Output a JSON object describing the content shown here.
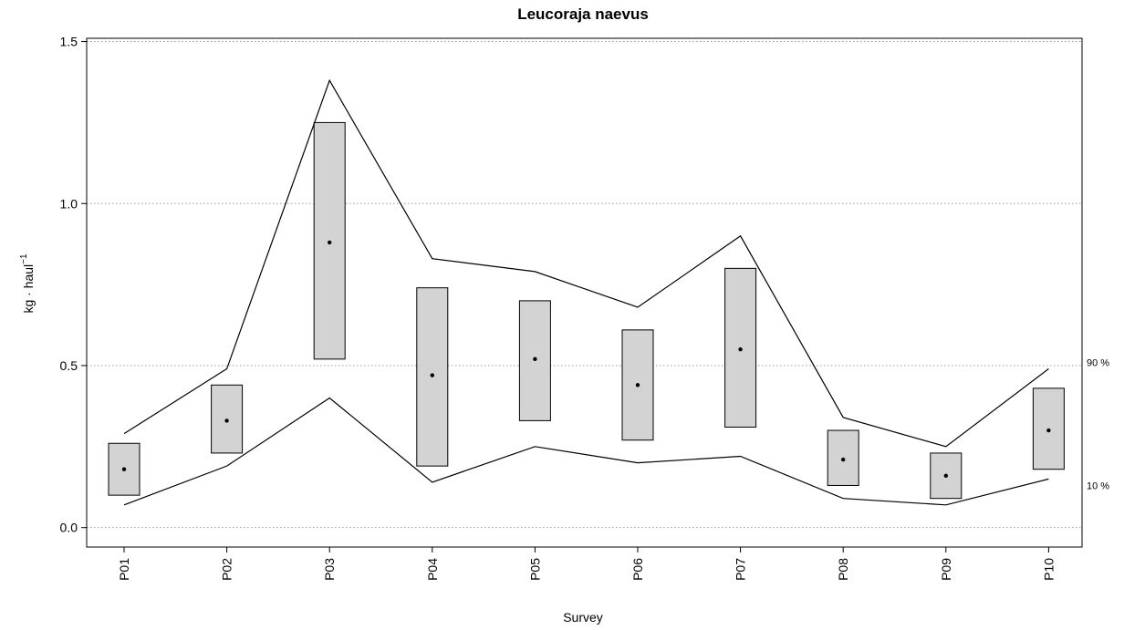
{
  "chart_data": {
    "type": "box",
    "title": "Leucoraja naevus",
    "xlabel": "Survey",
    "ylabel": "kg · haul",
    "ylabel_superscript": "−1",
    "ylim": [
      -0.06,
      1.51
    ],
    "yticks": [
      0.0,
      0.5,
      1.0,
      1.5
    ],
    "ytick_labels": [
      "0.0",
      "0.5",
      "1.0",
      "1.5"
    ],
    "grid": "horizontal dotted at y ticks",
    "categories": [
      "P01",
      "P02",
      "P03",
      "P04",
      "P05",
      "P06",
      "P07",
      "P08",
      "P09",
      "P10"
    ],
    "boxes": [
      {
        "category": "P01",
        "low": 0.1,
        "high": 0.26,
        "mid": 0.18
      },
      {
        "category": "P02",
        "low": 0.23,
        "high": 0.44,
        "mid": 0.33
      },
      {
        "category": "P03",
        "low": 0.52,
        "high": 1.25,
        "mid": 0.88
      },
      {
        "category": "P04",
        "low": 0.19,
        "high": 0.74,
        "mid": 0.47
      },
      {
        "category": "P05",
        "low": 0.33,
        "high": 0.7,
        "mid": 0.52
      },
      {
        "category": "P06",
        "low": 0.27,
        "high": 0.61,
        "mid": 0.44
      },
      {
        "category": "P07",
        "low": 0.31,
        "high": 0.8,
        "mid": 0.55
      },
      {
        "category": "P08",
        "low": 0.13,
        "high": 0.3,
        "mid": 0.21
      },
      {
        "category": "P09",
        "low": 0.09,
        "high": 0.23,
        "mid": 0.16
      },
      {
        "category": "P10",
        "low": 0.18,
        "high": 0.43,
        "mid": 0.3
      }
    ],
    "series": [
      {
        "name": "90 %",
        "values": [
          0.29,
          0.49,
          1.38,
          0.83,
          0.79,
          0.68,
          0.9,
          0.34,
          0.25,
          0.49
        ]
      },
      {
        "name": "10 %",
        "values": [
          0.07,
          0.19,
          0.4,
          0.14,
          0.25,
          0.2,
          0.22,
          0.09,
          0.07,
          0.15
        ]
      }
    ],
    "colors": {
      "box_fill": "#d3d3d3",
      "line": "#000000",
      "grid": "#999999"
    }
  }
}
